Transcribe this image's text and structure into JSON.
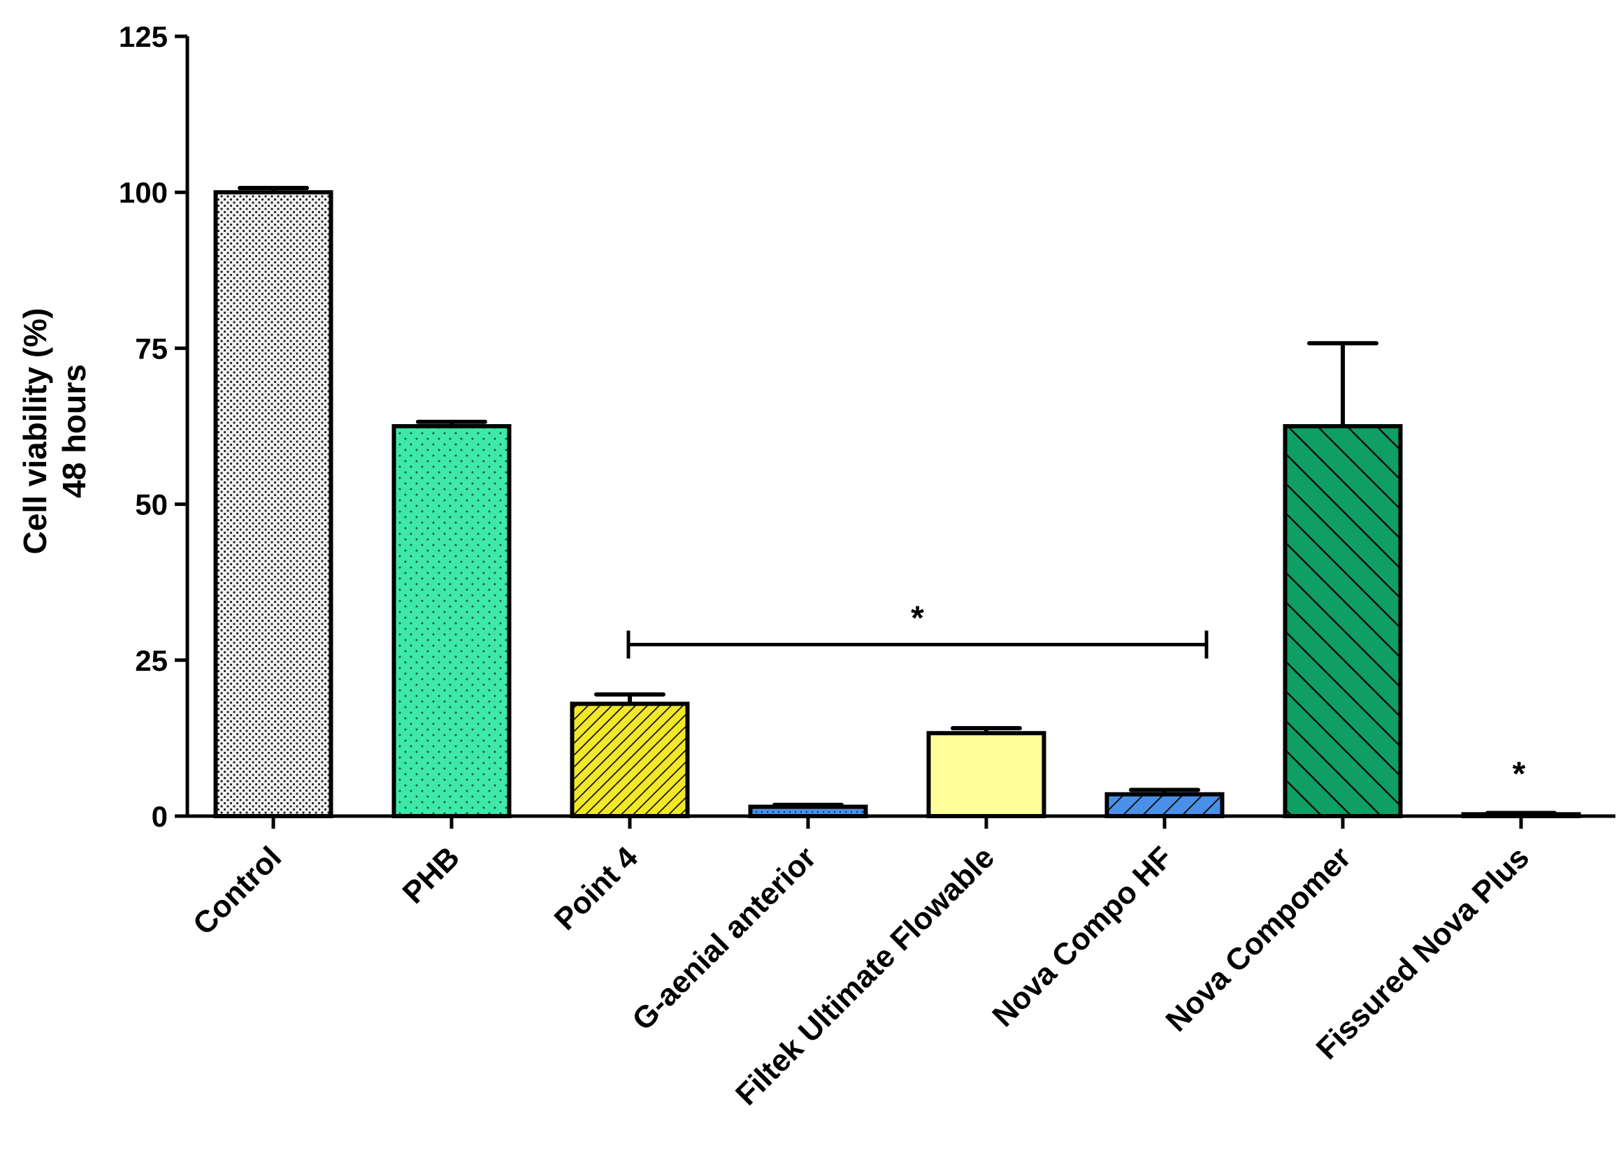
{
  "chart_data": {
    "type": "bar",
    "ylabel_lines": [
      "Cell viability (%)",
      "48 hours"
    ],
    "ylim": [
      0,
      125
    ],
    "yticks": [
      0,
      25,
      50,
      75,
      100,
      125
    ],
    "grid": false,
    "categories": [
      "Control",
      "PHB",
      "Point 4",
      "G-aenial anterior",
      "Filtek Ultimate Flowable",
      "Nova Compo HF",
      "Nova Compomer",
      "Fissured Nova Plus"
    ],
    "values": [
      100,
      62.5,
      18,
      1.5,
      13.3,
      3.5,
      62.5,
      0.3
    ],
    "errors": [
      0.7,
      0.7,
      1.5,
      0.3,
      0.8,
      0.7,
      13.3,
      0.2
    ],
    "fills": [
      "#f2f2f2",
      "#3ee8a8",
      "#f2e82a",
      "#4a90e8",
      "#ffff99",
      "#4a90e8",
      "#0f9e63",
      "#ffffff"
    ],
    "patterns": [
      "dots-dense",
      "dots",
      "diagonal-dense",
      "dots-fine",
      "none",
      "diagonal",
      "diagonal-wide",
      "none"
    ],
    "annotations": {
      "bracket_from": "Point 4",
      "bracket_to": "Nova Compo HF",
      "bracket_y": 27.5,
      "bracket_label": "*",
      "single_star_category": "Fissured Nova Plus",
      "single_star_label": "*"
    }
  }
}
